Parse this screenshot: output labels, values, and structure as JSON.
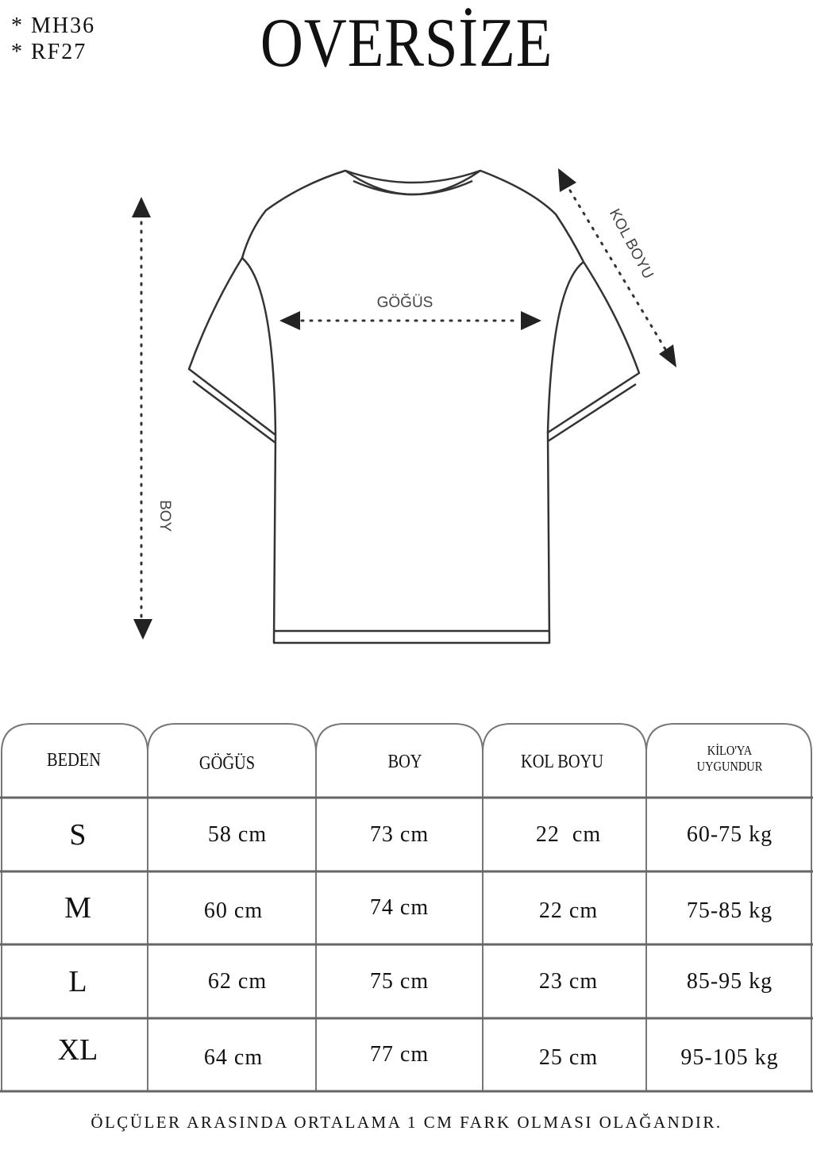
{
  "codes": [
    "* MH36",
    "* RF27"
  ],
  "title": "OVERSİZE",
  "diagram_labels": {
    "chest": "GÖĞÜS",
    "length": "BOY",
    "sleeve": "KOL BOYU"
  },
  "table": {
    "headers": [
      "BEDEN",
      "GÖĞÜS",
      "BOY",
      "KOL BOYU",
      "KİLO'YA",
      "UYGUNDUR"
    ],
    "rows": [
      [
        "S",
        "58 cm",
        "73 cm",
        "22  cm",
        "60-75 kg"
      ],
      [
        "M",
        "60 cm",
        "74 cm",
        "22 cm",
        "75-85 kg"
      ],
      [
        "L",
        "62 cm",
        "75 cm",
        "23 cm",
        "85-95 kg"
      ],
      [
        "XL",
        "64 cm",
        "77 cm",
        "25 cm",
        "95-105 kg"
      ]
    ]
  },
  "footer": "ÖLÇÜLER ARASINDA ORTALAMA 1 CM FARK OLMASI OLAĞANDIR."
}
